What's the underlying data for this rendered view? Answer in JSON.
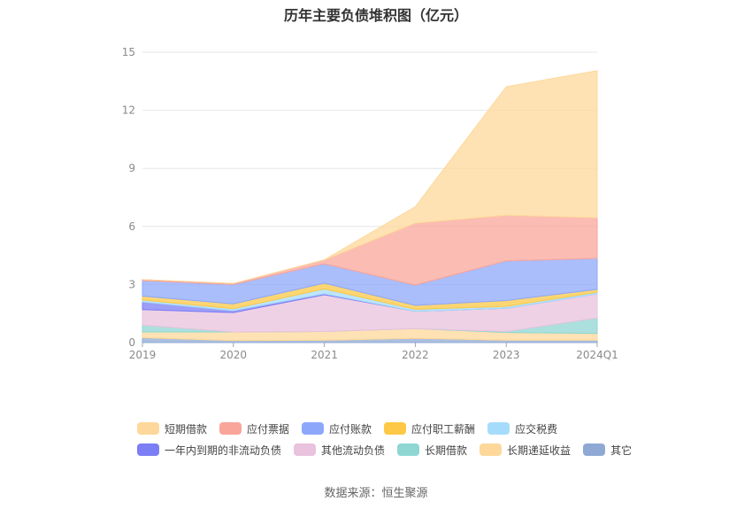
{
  "chart_data": {
    "type": "area",
    "title": "历年主要负债堆积图（亿元）",
    "categories": [
      "2019",
      "2020",
      "2021",
      "2022",
      "2023",
      "2024Q1"
    ],
    "ylim": [
      0,
      15
    ],
    "yticks": [
      0,
      3,
      6,
      9,
      12,
      15
    ],
    "grid": true,
    "legend_position": "bottom",
    "series": [
      {
        "name": "其它",
        "color": "#8fa9d4",
        "values": [
          0.25,
          0.1,
          0.12,
          0.22,
          0.12,
          0.12
        ]
      },
      {
        "name": "长期递延收益",
        "color": "#fdd89a",
        "values": [
          0.3,
          0.45,
          0.45,
          0.5,
          0.4,
          0.35
        ]
      },
      {
        "name": "长期借款",
        "color": "#8fd6d3",
        "values": [
          0.35,
          0.0,
          0.0,
          0.0,
          0.05,
          0.8
        ]
      },
      {
        "name": "其他流动负债",
        "color": "#e9c2dd",
        "values": [
          0.8,
          1.0,
          1.9,
          0.9,
          1.2,
          1.25
        ]
      },
      {
        "name": "一年内到期的非流动负债",
        "color": "#7b7ef5",
        "values": [
          0.4,
          0.1,
          0.05,
          0.0,
          0.0,
          0.0
        ]
      },
      {
        "name": "应交税费",
        "color": "#a6dcfb",
        "values": [
          0.1,
          0.1,
          0.25,
          0.1,
          0.1,
          0.08
        ]
      },
      {
        "name": "应付职工薪酬",
        "color": "#fcc845",
        "values": [
          0.2,
          0.25,
          0.3,
          0.2,
          0.3,
          0.15
        ]
      },
      {
        "name": "应付账款",
        "color": "#8da8fb",
        "values": [
          0.8,
          1.0,
          1.0,
          1.05,
          2.05,
          1.6
        ]
      },
      {
        "name": "应付票据",
        "color": "#f9a59a",
        "values": [
          0.05,
          0.05,
          0.2,
          3.2,
          2.35,
          2.1
        ]
      },
      {
        "name": "短期借款",
        "color": "#fdd89a",
        "values": [
          0.0,
          0.0,
          0.0,
          0.85,
          6.65,
          7.6
        ]
      }
    ]
  },
  "legend_rows": [
    [
      {
        "label": "短期借款",
        "color": "#fdd89a"
      },
      {
        "label": "应付票据",
        "color": "#f9a59a"
      },
      {
        "label": "应付账款",
        "color": "#8da8fb"
      },
      {
        "label": "应付职工薪酬",
        "color": "#fcc845"
      },
      {
        "label": "应交税费",
        "color": "#a6dcfb"
      }
    ],
    [
      {
        "label": "一年内到期的非流动负债",
        "color": "#7b7ef5"
      },
      {
        "label": "其他流动负债",
        "color": "#e9c2dd"
      },
      {
        "label": "长期借款",
        "color": "#8fd6d3"
      },
      {
        "label": "长期递延收益",
        "color": "#fdd89a"
      },
      {
        "label": "其它",
        "color": "#8fa9d4"
      }
    ]
  ],
  "source": "数据来源：恒生聚源"
}
